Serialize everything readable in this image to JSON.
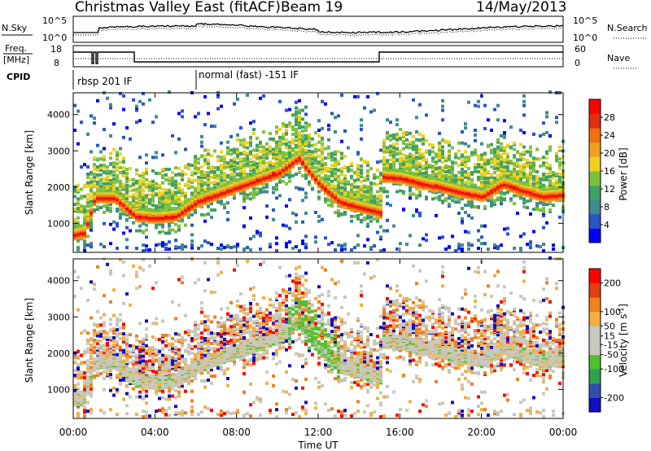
{
  "header": {
    "title": "Christmas Valley East (fitACF)",
    "beam": "Beam 19",
    "date": "14/May/2013"
  },
  "colors": {
    "nsky_line": "#000000",
    "power_scale": [
      "#0000ff",
      "#2a55c8",
      "#3f8a8a",
      "#41a066",
      "#7dc040",
      "#f0d020",
      "#f0a020",
      "#f07010",
      "#e03010",
      "#ff0000"
    ],
    "velocity_scale": [
      "#1010c0",
      "#3050b0",
      "#30a050",
      "#50c030",
      "#c8c8bc",
      "#c8c8bc",
      "#f0b040",
      "#f08020",
      "#e04010",
      "#ff0000"
    ]
  },
  "status_panels": {
    "noise": {
      "left_label": "N.Sky",
      "left_ticks": [
        "10^5",
        "10^0"
      ],
      "right_ticks": [
        "10^5",
        "10^0"
      ],
      "right_label": "N.Search",
      "right_label_style": "dotted"
    },
    "freq": {
      "left_label": "Freq.",
      "left_unit": "[MHz]",
      "left_ticks": [
        "18",
        "8"
      ],
      "right_ticks": [
        "60",
        "0"
      ],
      "right_label": "Nave",
      "right_label_style": "dotted"
    },
    "cpid": {
      "label": "CPID",
      "modes": [
        {
          "text": "rbsp 201 IF",
          "start_hour": 0.0
        },
        {
          "text": "normal (fast) -151 IF",
          "start_hour": 6.0
        }
      ]
    }
  },
  "chart_data": [
    {
      "type": "heatmap",
      "name": "power",
      "ylabel": "Slant Range [km]",
      "yticks": [
        1000,
        2000,
        3000,
        4000
      ],
      "ylim": [
        200,
        4600
      ],
      "colorbar": {
        "label": "Power [dB]",
        "ticks": [
          4,
          8,
          12,
          16,
          20,
          24,
          28
        ],
        "range": [
          0,
          32
        ]
      },
      "echo_bands": [
        {
          "hours": [
            0,
            0.5,
            1,
            2,
            3,
            4,
            5,
            6,
            7,
            8,
            9,
            10,
            11,
            12,
            13,
            14,
            15,
            15.01,
            16,
            17,
            18,
            19,
            20,
            21,
            22,
            23,
            24
          ],
          "range_km": [
            700,
            750,
            1700,
            1700,
            1200,
            1150,
            1200,
            1600,
            1800,
            2000,
            2200,
            2400,
            2800,
            2100,
            1600,
            1450,
            1300,
            2300,
            2250,
            2100,
            2000,
            1850,
            1750,
            2100,
            1900,
            1750,
            1800
          ],
          "peak_db": 26
        }
      ]
    },
    {
      "type": "heatmap",
      "name": "velocity",
      "ylabel": "Slant Range [km]",
      "xlabel": "Time UT",
      "xticks": [
        "00:00",
        "04:00",
        "08:00",
        "12:00",
        "16:00",
        "20:00",
        "00:00"
      ],
      "xlim": [
        0,
        24
      ],
      "yticks": [
        1000,
        2000,
        3000,
        4000
      ],
      "ylim": [
        200,
        4600
      ],
      "colorbar": {
        "label": "Velocity [m s^-1]",
        "ticks": [
          200,
          100,
          50,
          15,
          -15,
          -50,
          -100,
          -200
        ],
        "range": [
          -250,
          250
        ]
      }
    }
  ]
}
